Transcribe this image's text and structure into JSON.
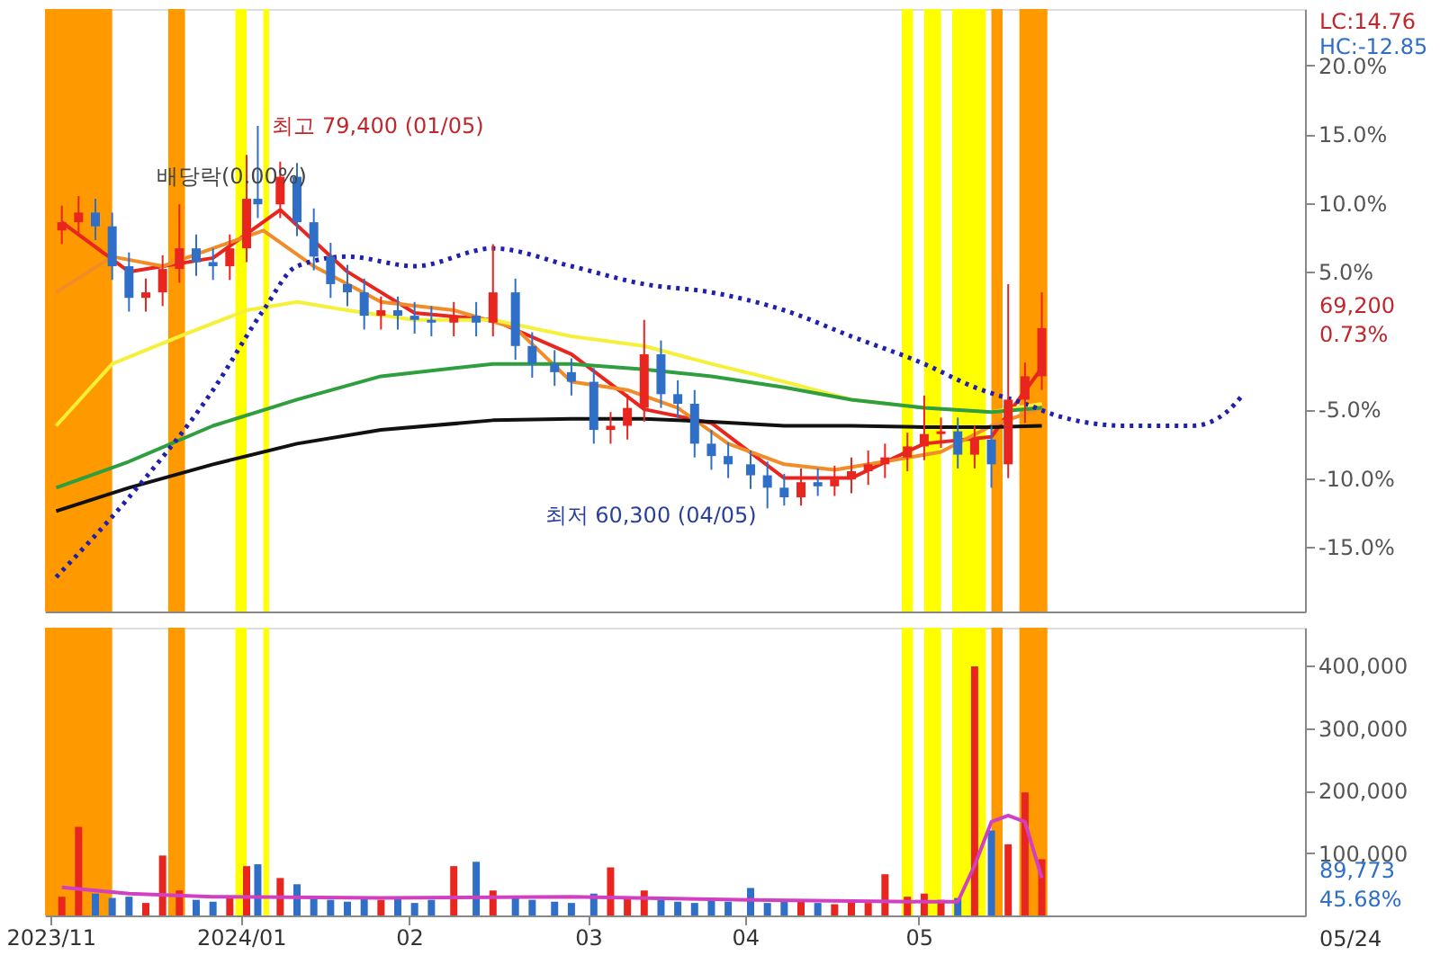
{
  "chart_data": [
    {
      "type": "candlestick",
      "x": [
        "2023-12-01",
        "2023-12-04",
        "2023-12-07",
        "2023-12-10",
        "2023-12-13",
        "2023-12-16",
        "2023-12-19",
        "2023-12-22",
        "2023-12-25",
        "2023-12-28",
        "2023-12-31",
        "2024-01-03",
        "2024-01-05",
        "2024-01-09",
        "2024-01-12",
        "2024-01-15",
        "2024-01-18",
        "2024-01-21",
        "2024-01-24",
        "2024-01-27",
        "2024-01-30",
        "2024-02-02",
        "2024-02-05",
        "2024-02-09",
        "2024-02-13",
        "2024-02-16",
        "2024-02-20",
        "2024-02-23",
        "2024-02-27",
        "2024-03-01",
        "2024-03-05",
        "2024-03-08",
        "2024-03-11",
        "2024-03-14",
        "2024-03-17",
        "2024-03-20",
        "2024-03-23",
        "2024-03-26",
        "2024-03-29",
        "2024-04-02",
        "2024-04-05",
        "2024-04-08",
        "2024-04-11",
        "2024-04-14",
        "2024-04-17",
        "2024-04-20",
        "2024-04-23",
        "2024-04-26",
        "2024-04-30",
        "2024-05-03",
        "2024-05-06",
        "2024-05-09",
        "2024-05-12",
        "2024-05-15",
        "2024-05-18",
        "2024-05-21",
        "2024-05-24"
      ],
      "ohlc": [
        [
          8.0,
          9.8,
          7.0,
          8.6
        ],
        [
          8.6,
          10.5,
          7.6,
          9.3
        ],
        [
          9.3,
          10.3,
          7.3,
          8.3
        ],
        [
          8.3,
          9.3,
          4.4,
          5.4
        ],
        [
          5.4,
          6.4,
          2.1,
          3.1
        ],
        [
          3.1,
          4.5,
          2.1,
          3.5
        ],
        [
          3.5,
          6.2,
          2.5,
          5.2
        ],
        [
          5.2,
          9.9,
          4.2,
          6.7
        ],
        [
          6.7,
          7.7,
          4.7,
          5.7
        ],
        [
          5.7,
          6.7,
          4.4,
          5.4
        ],
        [
          5.4,
          7.7,
          4.4,
          6.7
        ],
        [
          6.7,
          13.5,
          5.7,
          10.3
        ],
        [
          10.3,
          15.6,
          8.9,
          9.9
        ],
        [
          9.9,
          13.0,
          8.9,
          11.9
        ],
        [
          11.9,
          12.9,
          7.6,
          8.6
        ],
        [
          8.6,
          9.6,
          5.1,
          6.1
        ],
        [
          6.1,
          7.1,
          3.1,
          4.1
        ],
        [
          4.1,
          5.5,
          2.5,
          3.5
        ],
        [
          3.5,
          4.5,
          0.8,
          1.8
        ],
        [
          1.8,
          3.2,
          0.8,
          2.2
        ],
        [
          2.2,
          3.2,
          0.8,
          1.8
        ],
        [
          1.8,
          2.8,
          0.5,
          1.5
        ],
        [
          1.5,
          2.5,
          0.3,
          1.3
        ],
        [
          1.3,
          2.8,
          0.3,
          1.8
        ],
        [
          1.8,
          2.8,
          0.3,
          1.3
        ],
        [
          1.3,
          7.0,
          0.3,
          3.5
        ],
        [
          3.5,
          4.5,
          -1.4,
          -0.4
        ],
        [
          -0.4,
          0.6,
          -2.7,
          -1.7
        ],
        [
          -1.7,
          -0.7,
          -3.3,
          -2.3
        ],
        [
          -2.3,
          -1.3,
          -4.0,
          -3.0
        ],
        [
          -3.0,
          -2.0,
          -7.5,
          -6.5
        ],
        [
          -6.5,
          -5.2,
          -7.5,
          -6.2
        ],
        [
          -6.2,
          -3.9,
          -7.2,
          -4.9
        ],
        [
          -4.9,
          1.5,
          -5.9,
          -1.0
        ],
        [
          -1.0,
          0.0,
          -4.9,
          -3.9
        ],
        [
          -3.9,
          -2.9,
          -5.6,
          -4.6
        ],
        [
          -4.6,
          -3.6,
          -8.5,
          -7.5
        ],
        [
          -7.5,
          -6.5,
          -9.4,
          -8.4
        ],
        [
          -8.4,
          -7.4,
          -10.0,
          -9.0
        ],
        [
          -9.0,
          -8.0,
          -10.8,
          -9.8
        ],
        [
          -9.8,
          -8.8,
          -12.2,
          -10.7
        ],
        [
          -10.7,
          -9.7,
          -12.0,
          -11.4
        ],
        [
          -11.4,
          -9.3,
          -12.0,
          -10.3
        ],
        [
          -10.3,
          -9.3,
          -11.3,
          -10.6
        ],
        [
          -10.6,
          -9.1,
          -11.3,
          -10.1
        ],
        [
          -10.1,
          -8.5,
          -11.1,
          -9.5
        ],
        [
          -9.5,
          -8.0,
          -10.5,
          -9.0
        ],
        [
          -9.0,
          -7.5,
          -10.0,
          -8.5
        ],
        [
          -8.5,
          -6.7,
          -9.5,
          -7.7
        ],
        [
          -7.7,
          -4.0,
          -8.7,
          -6.8
        ],
        [
          -6.8,
          -5.6,
          -7.8,
          -6.6
        ],
        [
          -6.6,
          -5.6,
          -9.3,
          -8.3
        ],
        [
          -8.3,
          -6.2,
          -9.3,
          -7.2
        ],
        [
          -7.2,
          -6.2,
          -10.7,
          -9.0
        ],
        [
          -9.0,
          4.1,
          -10.0,
          -4.3
        ],
        [
          -4.3,
          -1.6,
          -6.0,
          -2.6
        ],
        [
          -2.6,
          3.5,
          -3.6,
          0.9
        ]
      ],
      "colors": [
        "#e8251f",
        "#e8251f",
        "#2f6fc8",
        "#2f6fc8",
        "#2f6fc8",
        "#e8251f",
        "#e8251f",
        "#e8251f",
        "#2f6fc8",
        "#2f6fc8",
        "#e8251f",
        "#e8251f",
        "#2f6fc8",
        "#e8251f",
        "#2f6fc8",
        "#2f6fc8",
        "#2f6fc8",
        "#2f6fc8",
        "#2f6fc8",
        "#e8251f",
        "#2f6fc8",
        "#2f6fc8",
        "#2f6fc8",
        "#e8251f",
        "#2f6fc8",
        "#e8251f",
        "#2f6fc8",
        "#2f6fc8",
        "#2f6fc8",
        "#2f6fc8",
        "#2f6fc8",
        "#e8251f",
        "#e8251f",
        "#e8251f",
        "#2f6fc8",
        "#2f6fc8",
        "#2f6fc8",
        "#2f6fc8",
        "#2f6fc8",
        "#2f6fc8",
        "#2f6fc8",
        "#2f6fc8",
        "#e8251f",
        "#2f6fc8",
        "#e8251f",
        "#e8251f",
        "#e8251f",
        "#e8251f",
        "#e8251f",
        "#e8251f",
        "#e8251f",
        "#2f6fc8",
        "#e8251f",
        "#2f6fc8",
        "#e8251f",
        "#e8251f",
        "#e8251f"
      ],
      "series": [
        {
          "type": "line",
          "color": "#e8251f",
          "x": [
            "2023-12-01",
            "2023-12-13",
            "2023-12-28",
            "2024-01-09",
            "2024-01-21",
            "2024-02-02",
            "2024-02-16",
            "2024-03-01",
            "2024-03-14",
            "2024-03-26",
            "2024-04-08",
            "2024-04-20",
            "2024-05-03",
            "2024-05-15",
            "2024-05-24"
          ],
          "values": [
            8.6,
            5.0,
            6.0,
            9.5,
            5.0,
            2.0,
            1.5,
            -1.0,
            -5.0,
            -6.0,
            -10.0,
            -10.0,
            -7.5,
            -7.0,
            -2.0
          ]
        },
        {
          "type": "line",
          "color": "#f28c28",
          "x": [
            "2023-11-30",
            "2023-12-10",
            "2023-12-19",
            "2023-12-28",
            "2024-01-06",
            "2024-01-15",
            "2024-01-27",
            "2024-02-09",
            "2024-02-20",
            "2024-03-01",
            "2024-03-11",
            "2024-03-20",
            "2024-03-29",
            "2024-04-08",
            "2024-04-17",
            "2024-04-26",
            "2024-05-06",
            "2024-05-15",
            "2024-05-24"
          ],
          "values": [
            3.5,
            6.1,
            5.4,
            6.7,
            8.0,
            5.4,
            2.8,
            2.2,
            0.9,
            -3.0,
            -3.6,
            -4.9,
            -7.5,
            -9.0,
            -9.4,
            -8.8,
            -8.1,
            -6.2,
            -4.9
          ]
        },
        {
          "type": "line",
          "color": "#f5f03a",
          "x": [
            "2023-11-30",
            "2023-12-10",
            "2023-12-22",
            "2024-01-03",
            "2024-01-12",
            "2024-01-21",
            "2024-02-02",
            "2024-02-16",
            "2024-03-01",
            "2024-03-14",
            "2024-03-26",
            "2024-04-08",
            "2024-04-20",
            "2024-05-03",
            "2024-05-15",
            "2024-05-24"
          ],
          "values": [
            -6.2,
            -1.7,
            0.3,
            2.2,
            2.8,
            2.2,
            1.5,
            1.5,
            0.3,
            -0.4,
            -1.7,
            -3.0,
            -4.3,
            -4.9,
            -5.2,
            -4.6
          ]
        },
        {
          "type": "line",
          "color": "#2e9e3e",
          "x": [
            "2023-11-30",
            "2023-12-13",
            "2023-12-28",
            "2024-01-12",
            "2024-01-27",
            "2024-02-16",
            "2024-03-01",
            "2024-03-14",
            "2024-03-26",
            "2024-04-08",
            "2024-04-20",
            "2024-05-03",
            "2024-05-15",
            "2024-05-24"
          ],
          "values": [
            -10.7,
            -8.8,
            -6.2,
            -4.3,
            -2.6,
            -1.7,
            -1.7,
            -2.1,
            -2.6,
            -3.4,
            -4.3,
            -4.9,
            -5.2,
            -4.9
          ]
        },
        {
          "type": "line",
          "color": "#111111",
          "x": [
            "2023-11-30",
            "2023-12-13",
            "2023-12-28",
            "2024-01-12",
            "2024-01-27",
            "2024-02-16",
            "2024-03-01",
            "2024-03-14",
            "2024-03-26",
            "2024-04-08",
            "2024-04-20",
            "2024-05-03",
            "2024-05-15",
            "2024-05-24"
          ],
          "values": [
            -12.4,
            -10.7,
            -9.0,
            -7.5,
            -6.5,
            -5.8,
            -5.7,
            -5.7,
            -5.9,
            -6.2,
            -6.2,
            -6.3,
            -6.3,
            -6.2
          ]
        },
        {
          "type": "line",
          "color": "#2020b0",
          "line_style": "dotted",
          "x": [
            "2023-11-30",
            "2023-12-13",
            "2023-12-28",
            "2024-01-06",
            "2024-01-12",
            "2024-01-21",
            "2024-02-02",
            "2024-02-16",
            "2024-03-01",
            "2024-03-14",
            "2024-03-26",
            "2024-04-08",
            "2024-04-20",
            "2024-05-03",
            "2024-05-12",
            "2024-05-21",
            "2024-05-27",
            "2024-06-08",
            "2024-06-20",
            "2024-06-26",
            "2024-06-29"
          ],
          "values": [
            -17.2,
            -11.4,
            -3.6,
            2.2,
            5.4,
            6.1,
            5.4,
            6.7,
            5.4,
            4.1,
            3.5,
            2.2,
            0.3,
            -1.7,
            -3.4,
            -4.6,
            -5.5,
            -6.2,
            -6.2,
            -5.2,
            -3.9
          ]
        }
      ],
      "bands": [
        {
          "axis": "x",
          "from": "2023-11-28",
          "to": "2023-12-10",
          "color": "#ff9900"
        },
        {
          "axis": "x",
          "from": "2023-12-20",
          "to": "2023-12-23",
          "color": "#ff9900"
        },
        {
          "axis": "x",
          "from": "2024-01-01",
          "to": "2024-01-03",
          "color": "#ffff00"
        },
        {
          "axis": "x",
          "from": "2024-01-06",
          "to": "2024-01-07",
          "color": "#ffff00"
        },
        {
          "axis": "x",
          "from": "2024-04-29",
          "to": "2024-05-01",
          "color": "#ffff00"
        },
        {
          "axis": "x",
          "from": "2024-05-03",
          "to": "2024-05-06",
          "color": "#ffff00"
        },
        {
          "axis": "x",
          "from": "2024-05-08",
          "to": "2024-05-14",
          "color": "#ffff00"
        },
        {
          "axis": "x",
          "from": "2024-05-15",
          "to": "2024-05-17",
          "color": "#ff9900"
        },
        {
          "axis": "x",
          "from": "2024-05-20",
          "to": "2024-05-25",
          "color": "#ff9900"
        }
      ],
      "annotations": [
        {
          "text": "최고 79,400 (01/05)",
          "x": "2024-01-05",
          "y": 15.6
        },
        {
          "text": "최저 60,300 (04/05)",
          "x": "2024-04-05",
          "y": -12.2
        },
        "배당락(0.00%)",
        "LC:14.76",
        "HC:-12.85",
        "69,200",
        "0.73%"
      ],
      "xlim": [
        "2023-11-28",
        "2024-07-10"
      ],
      "ylim": [
        -19.7,
        24.1
      ],
      "yticks": [
        {
          "value": 20,
          "label": "20.0%"
        },
        {
          "value": 15,
          "label": "15.0%"
        },
        {
          "value": 10,
          "label": "10.0%"
        },
        {
          "value": 5,
          "label": "5.0%"
        },
        {
          "value": -5,
          "label": "-5.0%"
        },
        {
          "value": -10,
          "label": "-10.0%"
        },
        {
          "value": -15,
          "label": "-15.0%"
        }
      ],
      "tick_labels": "y"
    },
    {
      "type": "bar",
      "x": [
        "2023-12-01",
        "2023-12-04",
        "2023-12-07",
        "2023-12-10",
        "2023-12-13",
        "2023-12-16",
        "2023-12-19",
        "2023-12-22",
        "2023-12-25",
        "2023-12-28",
        "2023-12-31",
        "2024-01-03",
        "2024-01-05",
        "2024-01-09",
        "2024-01-12",
        "2024-01-15",
        "2024-01-18",
        "2024-01-21",
        "2024-01-24",
        "2024-01-27",
        "2024-01-30",
        "2024-02-02",
        "2024-02-05",
        "2024-02-09",
        "2024-02-13",
        "2024-02-16",
        "2024-02-20",
        "2024-02-23",
        "2024-02-27",
        "2024-03-01",
        "2024-03-05",
        "2024-03-08",
        "2024-03-11",
        "2024-03-14",
        "2024-03-17",
        "2024-03-20",
        "2024-03-23",
        "2024-03-26",
        "2024-03-29",
        "2024-04-02",
        "2024-04-05",
        "2024-04-08",
        "2024-04-11",
        "2024-04-14",
        "2024-04-17",
        "2024-04-20",
        "2024-04-23",
        "2024-04-26",
        "2024-04-30",
        "2024-05-03",
        "2024-05-06",
        "2024-05-09",
        "2024-05-12",
        "2024-05-15",
        "2024-05-18",
        "2024-05-21",
        "2024-05-24"
      ],
      "values": [
        30000,
        142000,
        35000,
        28000,
        30000,
        20000,
        96000,
        40000,
        25000,
        22000,
        30000,
        79000,
        82000,
        60000,
        50000,
        30000,
        25000,
        22000,
        30000,
        25000,
        28000,
        20000,
        25000,
        79000,
        86000,
        40000,
        30000,
        25000,
        22000,
        20000,
        35000,
        77000,
        30000,
        40000,
        25000,
        22000,
        20000,
        25000,
        22000,
        44000,
        20000,
        22000,
        25000,
        20000,
        18000,
        22000,
        20000,
        66000,
        30000,
        35000,
        25000,
        28000,
        399000,
        136000,
        114000,
        197000,
        90000
      ],
      "colors": [
        "#e8251f",
        "#e8251f",
        "#2f6fc8",
        "#2f6fc8",
        "#2f6fc8",
        "#e8251f",
        "#e8251f",
        "#e8251f",
        "#2f6fc8",
        "#2f6fc8",
        "#e8251f",
        "#e8251f",
        "#2f6fc8",
        "#e8251f",
        "#2f6fc8",
        "#2f6fc8",
        "#2f6fc8",
        "#2f6fc8",
        "#2f6fc8",
        "#e8251f",
        "#2f6fc8",
        "#2f6fc8",
        "#2f6fc8",
        "#e8251f",
        "#2f6fc8",
        "#e8251f",
        "#2f6fc8",
        "#2f6fc8",
        "#2f6fc8",
        "#2f6fc8",
        "#2f6fc8",
        "#e8251f",
        "#e8251f",
        "#e8251f",
        "#2f6fc8",
        "#2f6fc8",
        "#2f6fc8",
        "#2f6fc8",
        "#2f6fc8",
        "#2f6fc8",
        "#2f6fc8",
        "#2f6fc8",
        "#e8251f",
        "#2f6fc8",
        "#e8251f",
        "#e8251f",
        "#e8251f",
        "#e8251f",
        "#e8251f",
        "#e8251f",
        "#e8251f",
        "#2f6fc8",
        "#e8251f",
        "#2f6fc8",
        "#e8251f",
        "#e8251f",
        "#e8251f"
      ],
      "series": [
        {
          "type": "line",
          "color": "#d040c0",
          "x": [
            "2023-12-01",
            "2023-12-13",
            "2023-12-28",
            "2024-01-27",
            "2024-03-01",
            "2024-04-02",
            "2024-05-03",
            "2024-05-09",
            "2024-05-12",
            "2024-05-15",
            "2024-05-18",
            "2024-05-21",
            "2024-05-24"
          ],
          "values": [
            45000,
            35000,
            30000,
            28000,
            30000,
            25000,
            22000,
            22000,
            80000,
            150000,
            160000,
            150000,
            60000
          ]
        }
      ],
      "bands": [
        {
          "axis": "x",
          "from": "2023-11-28",
          "to": "2023-12-10",
          "color": "#ff9900"
        },
        {
          "axis": "x",
          "from": "2023-12-20",
          "to": "2023-12-23",
          "color": "#ff9900"
        },
        {
          "axis": "x",
          "from": "2024-01-01",
          "to": "2024-01-03",
          "color": "#ffff00"
        },
        {
          "axis": "x",
          "from": "2024-01-06",
          "to": "2024-01-07",
          "color": "#ffff00"
        },
        {
          "axis": "x",
          "from": "2024-04-29",
          "to": "2024-05-01",
          "color": "#ffff00"
        },
        {
          "axis": "x",
          "from": "2024-05-03",
          "to": "2024-05-06",
          "color": "#ffff00"
        },
        {
          "axis": "x",
          "from": "2024-05-08",
          "to": "2024-05-14",
          "color": "#ffff00"
        },
        {
          "axis": "x",
          "from": "2024-05-15",
          "to": "2024-05-17",
          "color": "#ff9900"
        },
        {
          "axis": "x",
          "from": "2024-05-20",
          "to": "2024-05-25",
          "color": "#ff9900"
        }
      ],
      "annotations": [
        "89,773",
        "45.68%",
        "05/24"
      ],
      "xlim": [
        "2023-11-28",
        "2024-07-10"
      ],
      "ylim": [
        0,
        461000
      ],
      "xticks": [
        {
          "value": "2023-11-29",
          "label": "2023/11"
        },
        {
          "value": "2024-01-02",
          "label": "2024/01"
        },
        {
          "value": "2024-02-01",
          "label": "02"
        },
        {
          "value": "2024-03-04",
          "label": "03"
        },
        {
          "value": "2024-04-01",
          "label": "04"
        },
        {
          "value": "2024-05-02",
          "label": "05"
        }
      ],
      "yticks": [
        {
          "value": 100000,
          "label": "100,000"
        },
        {
          "value": 200000,
          "label": "200,000"
        },
        {
          "value": 300000,
          "label": "300,000"
        },
        {
          "value": 400000,
          "label": "400,000"
        }
      ]
    }
  ]
}
